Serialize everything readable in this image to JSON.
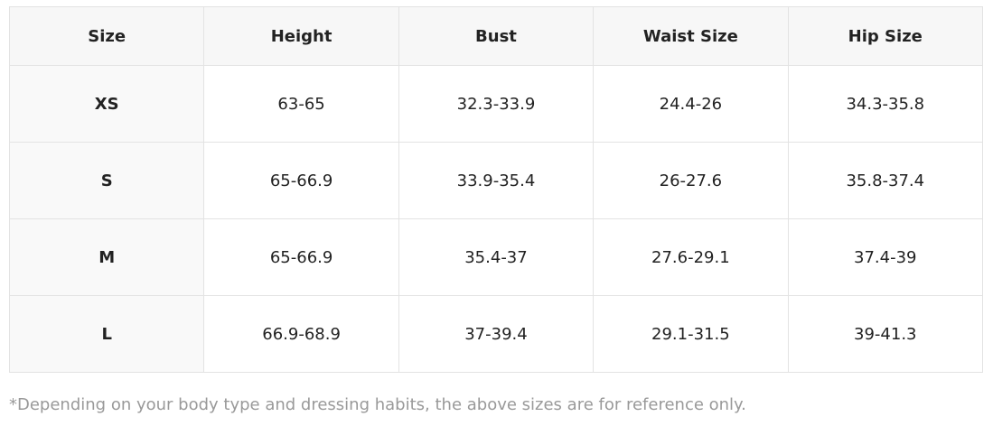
{
  "table": {
    "headers": [
      "Size",
      "Height",
      "Bust",
      "Waist Size",
      "Hip Size"
    ],
    "rows": [
      [
        "XS",
        "63-65",
        "32.3-33.9",
        "24.4-26",
        "34.3-35.8"
      ],
      [
        "S",
        "65-66.9",
        "33.9-35.4",
        "26-27.6",
        "35.8-37.4"
      ],
      [
        "M",
        "65-66.9",
        "35.4-37",
        "27.6-29.1",
        "37.4-39"
      ],
      [
        "L",
        "66.9-68.9",
        "37-39.4",
        "29.1-31.5",
        "39-41.3"
      ]
    ]
  },
  "note": "*Depending on your body type and dressing habits, the above sizes are for reference only."
}
